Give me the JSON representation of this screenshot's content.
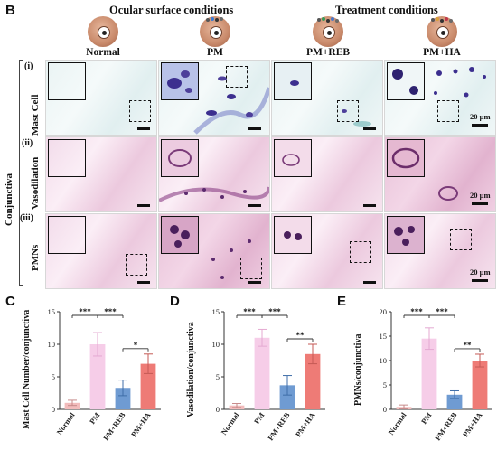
{
  "figure": {
    "panel_b": "B",
    "header_left": "Ocular surface conditions",
    "header_right": "Treatment conditions",
    "groups": [
      "Normal",
      "PM",
      "PM+REB",
      "PM+HA"
    ],
    "tissue_label": "Conjunctiva",
    "rows": [
      {
        "roman": "(i)",
        "label": "Mast Cell"
      },
      {
        "roman": "(ii)",
        "label": "Vasodilation"
      },
      {
        "roman": "(iii)",
        "label": "PMNs"
      }
    ],
    "scale_bar": "20 μm"
  },
  "colors": {
    "normal": "#f2bcbc",
    "pm": "#f6cde8",
    "pm_reb": "#6f9bd2",
    "pm_ha": "#ee7b76",
    "mast_stain": "#4d3f9a",
    "he_stain": "#7a3a78"
  },
  "chart_data": [
    {
      "panel": "C",
      "type": "bar",
      "categories": [
        "Normal",
        "PM",
        "PM+REB",
        "PM+HA"
      ],
      "values": [
        1.0,
        10.0,
        3.3,
        7.0
      ],
      "errors": [
        0.4,
        1.8,
        1.2,
        1.5
      ],
      "ylabel": "Mast Cell Number/conjunctiva",
      "ylim": [
        0,
        15
      ],
      "yticks": [
        "0",
        "5",
        "10",
        "15"
      ],
      "significance": [
        {
          "from": 0,
          "to": 1,
          "label": "***"
        },
        {
          "from": 1,
          "to": 2,
          "label": "***"
        },
        {
          "from": 2,
          "to": 3,
          "label": "*"
        }
      ]
    },
    {
      "panel": "D",
      "type": "bar",
      "categories": [
        "Normal",
        "PM",
        "PM+REB",
        "PM+HA"
      ],
      "values": [
        0.6,
        11.0,
        3.7,
        8.5
      ],
      "errors": [
        0.3,
        1.3,
        1.5,
        1.5
      ],
      "ylabel": "Vasodilation/conjunctiva",
      "ylim": [
        0,
        15
      ],
      "yticks": [
        "0",
        "5",
        "10",
        "15"
      ],
      "significance": [
        {
          "from": 0,
          "to": 1,
          "label": "***"
        },
        {
          "from": 1,
          "to": 2,
          "label": "***"
        },
        {
          "from": 2,
          "to": 3,
          "label": "**"
        }
      ]
    },
    {
      "panel": "E",
      "type": "bar",
      "categories": [
        "Normal",
        "PM",
        "PM+REB",
        "PM+HA"
      ],
      "values": [
        0.5,
        14.5,
        3.0,
        10.0
      ],
      "errors": [
        0.4,
        2.2,
        0.8,
        1.3
      ],
      "ylabel": "PMNs/conjunctiva",
      "ylim": [
        0,
        20
      ],
      "yticks": [
        "0",
        "5",
        "10",
        "15",
        "20"
      ],
      "significance": [
        {
          "from": 0,
          "to": 1,
          "label": "***"
        },
        {
          "from": 1,
          "to": 2,
          "label": "***"
        },
        {
          "from": 2,
          "to": 3,
          "label": "**"
        }
      ]
    }
  ]
}
